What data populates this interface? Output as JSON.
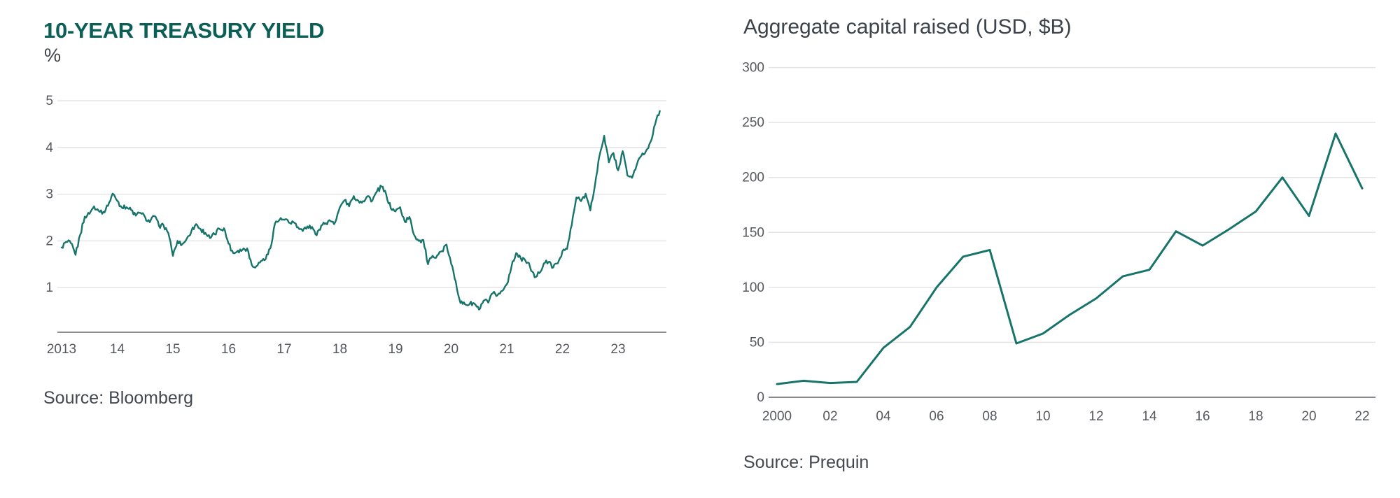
{
  "page": {
    "background": "#ffffff"
  },
  "colors": {
    "line_teal": "#17746a",
    "title_teal": "#0c5f56",
    "title_gray": "#3d434b",
    "tick_gray": "#55585e",
    "grid_gray": "#e4e5e7",
    "axis_gray_left": "#66696e",
    "axis_gray_right": "#85888d",
    "source_gray": "#434950"
  },
  "chart_data": [
    {
      "type": "line",
      "title": "10-YEAR TREASURY YIELD",
      "unit_label": "%",
      "source": "Source: Bloomberg",
      "xlabel": "",
      "ylabel": "%",
      "grid": true,
      "legend": "none",
      "ylim": [
        0,
        5
      ],
      "xlim": [
        2013.0,
        2023.95
      ],
      "y_ticks": [
        1,
        2,
        3,
        4,
        5
      ],
      "x_tick_years": [
        2013,
        2014,
        2015,
        2016,
        2017,
        2018,
        2019,
        2020,
        2021,
        2022,
        2023
      ],
      "x_tick_labels": [
        "2013",
        "14",
        "15",
        "16",
        "17",
        "18",
        "19",
        "20",
        "21",
        "22",
        "23"
      ],
      "series": [
        {
          "name": "10-year U.S. Treasury yield (%)",
          "x_monthly_start": "2013-01",
          "x_monthly_end": "2023-10",
          "values": [
            1.86,
            1.98,
            1.95,
            1.7,
            2.13,
            2.52,
            2.58,
            2.74,
            2.64,
            2.62,
            2.75,
            3.01,
            2.86,
            2.71,
            2.72,
            2.66,
            2.54,
            2.6,
            2.51,
            2.4,
            2.53,
            2.32,
            2.33,
            2.17,
            1.68,
            2.0,
            1.93,
            2.05,
            2.21,
            2.36,
            2.25,
            2.17,
            2.06,
            2.14,
            2.26,
            2.27,
            1.94,
            1.74,
            1.79,
            1.81,
            1.84,
            1.49,
            1.46,
            1.57,
            1.61,
            1.84,
            2.37,
            2.45,
            2.45,
            2.39,
            2.4,
            2.29,
            2.21,
            2.31,
            2.3,
            2.12,
            2.33,
            2.38,
            2.42,
            2.4,
            2.72,
            2.87,
            2.74,
            2.96,
            2.86,
            2.85,
            2.96,
            2.86,
            3.06,
            3.16,
            2.99,
            2.69,
            2.63,
            2.72,
            2.41,
            2.51,
            2.13,
            2.0,
            2.02,
            1.5,
            1.68,
            1.69,
            1.78,
            1.92,
            1.51,
            1.13,
            0.67,
            0.64,
            0.65,
            0.66,
            0.53,
            0.72,
            0.68,
            0.88,
            0.84,
            0.93,
            1.07,
            1.44,
            1.74,
            1.63,
            1.58,
            1.45,
            1.22,
            1.31,
            1.52,
            1.55,
            1.43,
            1.52,
            1.78,
            1.83,
            2.34,
            2.93,
            2.85,
            3.01,
            2.65,
            3.19,
            3.83,
            4.25,
            3.68,
            3.88,
            3.51,
            3.92,
            3.4,
            3.35,
            3.62,
            3.82,
            3.92,
            4.12,
            4.5,
            4.78
          ]
        }
      ]
    },
    {
      "type": "line",
      "title": "Aggregate capital raised (USD, $B)",
      "source": "Source: Prequin",
      "xlabel": "",
      "ylabel": "USD, $B",
      "grid": true,
      "legend": "none",
      "ylim": [
        0,
        300
      ],
      "xlim": [
        2000,
        2022
      ],
      "y_ticks": [
        0,
        50,
        100,
        150,
        200,
        250,
        300
      ],
      "x_tick_years": [
        2000,
        2002,
        2004,
        2006,
        2008,
        2010,
        2012,
        2014,
        2016,
        2018,
        2020,
        2022
      ],
      "x_tick_labels": [
        "2000",
        "02",
        "04",
        "06",
        "08",
        "10",
        "12",
        "14",
        "16",
        "18",
        "20",
        "22"
      ],
      "series": [
        {
          "name": "Aggregate capital raised (USD, $B)",
          "x": [
            2000,
            2001,
            2002,
            2003,
            2004,
            2005,
            2006,
            2007,
            2008,
            2009,
            2010,
            2011,
            2012,
            2013,
            2014,
            2015,
            2016,
            2017,
            2018,
            2019,
            2020,
            2021,
            2022
          ],
          "values": [
            12,
            15,
            13,
            14,
            45,
            64,
            100,
            128,
            134,
            49,
            58,
            75,
            90,
            110,
            116,
            151,
            138,
            153,
            169,
            200,
            165,
            240,
            190
          ]
        }
      ]
    }
  ]
}
